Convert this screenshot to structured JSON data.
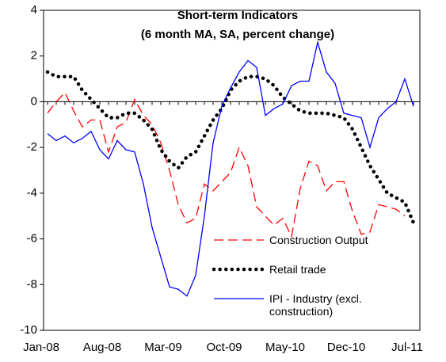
{
  "chart_data": {
    "type": "line",
    "title": "Short-term Indicators",
    "subtitle": "(6 month MA, SA, percent change)",
    "categories": [
      "Jan-08",
      null,
      null,
      null,
      null,
      null,
      null,
      "Aug-08",
      null,
      null,
      null,
      null,
      null,
      null,
      "Mar-09",
      null,
      null,
      null,
      null,
      null,
      null,
      "Oct-09",
      null,
      null,
      null,
      null,
      null,
      null,
      "May-10",
      null,
      null,
      null,
      null,
      null,
      null,
      "Dec-10",
      null,
      null,
      null,
      null,
      null,
      null,
      "Jul-11"
    ],
    "series": [
      {
        "name": "Construction Output",
        "color": "#ff0000",
        "style": "dashed",
        "values": [
          -0.5,
          0.0,
          0.4,
          -0.4,
          -1.1,
          -0.8,
          -0.8,
          -2.2,
          -1.1,
          -0.9,
          0.1,
          -0.6,
          -1.0,
          -1.8,
          -3.0,
          -4.5,
          -5.3,
          -5.1,
          -3.6,
          -3.9,
          -3.5,
          -3.1,
          -2.0,
          -2.8,
          -4.6,
          -5.0,
          -5.4,
          -5.1,
          -5.9,
          -3.8,
          -2.6,
          -2.8,
          -3.9,
          -3.5,
          -3.5,
          -4.8,
          -5.8,
          -5.7,
          -4.5,
          -4.6,
          -4.7,
          -5.0,
          null
        ]
      },
      {
        "name": "Retail trade",
        "color": "#000000",
        "style": "dotted",
        "values": [
          1.3,
          1.1,
          1.1,
          1.1,
          0.5,
          0.1,
          -0.3,
          -0.7,
          -0.7,
          -0.5,
          -0.5,
          -0.8,
          -1.2,
          -2.1,
          -2.6,
          -2.9,
          -2.4,
          -2.2,
          -1.5,
          -0.8,
          -0.3,
          0.5,
          0.9,
          1.1,
          1.1,
          1.0,
          0.7,
          0.2,
          -0.1,
          -0.4,
          -0.5,
          -0.5,
          -0.5,
          -0.6,
          -0.7,
          -1.2,
          -2.0,
          -2.8,
          -3.4,
          -4.0,
          -4.2,
          -4.4,
          -5.3
        ]
      },
      {
        "name": "IPI - Industry (excl. construction)",
        "color": "#0000ff",
        "style": "solid",
        "values": [
          -1.4,
          -1.7,
          -1.5,
          -1.8,
          -1.6,
          -1.3,
          -2.1,
          -2.5,
          -1.7,
          -2.1,
          -2.2,
          -3.6,
          -5.5,
          -6.8,
          -8.1,
          -8.2,
          -8.5,
          -7.6,
          -5.0,
          -1.8,
          -0.2,
          0.6,
          1.3,
          1.8,
          1.5,
          -0.6,
          -0.3,
          -0.1,
          0.7,
          0.9,
          0.9,
          2.6,
          1.3,
          0.8,
          -0.5,
          -0.6,
          -0.7,
          -2.0,
          -0.7,
          -0.3,
          0.0,
          1.0,
          -0.2
        ]
      }
    ],
    "ylim": [
      -10,
      4
    ],
    "yticks": [
      -10,
      -8,
      -6,
      -4,
      -2,
      0,
      2,
      4
    ]
  }
}
